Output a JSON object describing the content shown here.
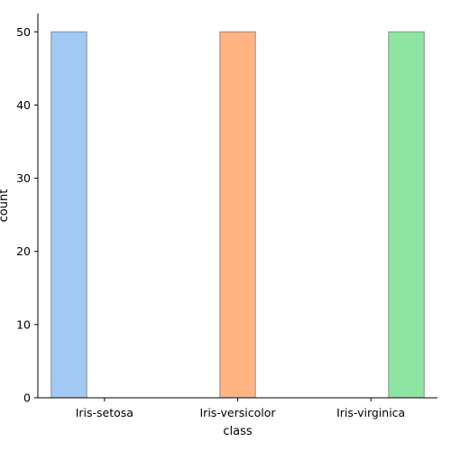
{
  "chart_data": {
    "type": "bar",
    "title": "",
    "xlabel": "class",
    "ylabel": "count",
    "categories": [
      "Iris-setosa",
      "Iris-versicolor",
      "Iris-virginica"
    ],
    "series": [
      {
        "name": "Iris-setosa",
        "values": [
          50,
          0,
          0
        ],
        "color": "#a1c9f4"
      },
      {
        "name": "Iris-versicolor",
        "values": [
          0,
          50,
          0
        ],
        "color": "#ffb482"
      },
      {
        "name": "Iris-virginica",
        "values": [
          0,
          0,
          50
        ],
        "color": "#8de5a1"
      }
    ],
    "ylim": [
      0,
      52.5
    ],
    "yticks": [
      0,
      10,
      20,
      30,
      40,
      50
    ],
    "grid": false,
    "legend": "none",
    "bar_edge_color": "#8c8c8c"
  }
}
